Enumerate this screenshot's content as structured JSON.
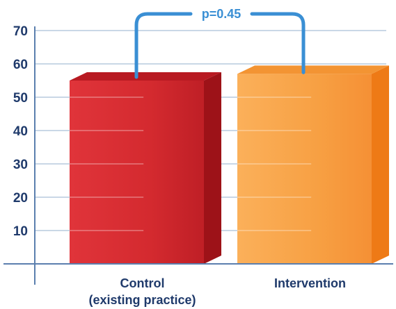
{
  "chart_data": {
    "type": "bar",
    "categories": [
      "Control",
      "Intervention"
    ],
    "category_sublabels": [
      "(existing practice)",
      ""
    ],
    "values": [
      55,
      57
    ],
    "yticks": [
      10,
      20,
      30,
      40,
      50,
      60,
      70
    ],
    "ylim": [
      0,
      72
    ],
    "grid": true,
    "title": "",
    "xlabel": "",
    "ylabel": "",
    "annotation": {
      "text": "p=0.45",
      "between": [
        0,
        1
      ]
    },
    "colors": {
      "bars": [
        "#d42a2f",
        "#f7a043"
      ],
      "bar_tops": [
        "#b81a22",
        "#f39433"
      ],
      "bar_sides": [
        "#9d1218",
        "#ee7a16"
      ],
      "gridline": "#c9d7e6",
      "axis": "#5b7fae",
      "annotation": "#3a8fd4",
      "text": "#1f3a6b"
    }
  }
}
